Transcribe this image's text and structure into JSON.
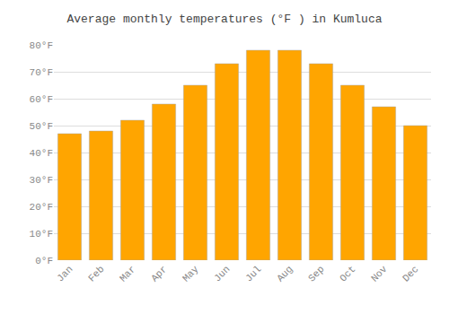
{
  "chart_data": {
    "type": "bar",
    "title": "Average monthly temperatures (°F ) in Kumluca",
    "categories": [
      "Jan",
      "Feb",
      "Mar",
      "Apr",
      "May",
      "Jun",
      "Jul",
      "Aug",
      "Sep",
      "Oct",
      "Nov",
      "Dec"
    ],
    "values": [
      47,
      48,
      52,
      58,
      65,
      73,
      78,
      78,
      73,
      65,
      57,
      50
    ],
    "color": "#FFA500",
    "ylim": [
      0,
      80
    ],
    "yticks": [
      {
        "value": 0,
        "label": "0°F"
      },
      {
        "value": 10,
        "label": "10°F"
      },
      {
        "value": 20,
        "label": "20°F"
      },
      {
        "value": 30,
        "label": "30°F"
      },
      {
        "value": 40,
        "label": "40°F"
      },
      {
        "value": 50,
        "label": "50°F"
      },
      {
        "value": 60,
        "label": "60°F"
      },
      {
        "value": 70,
        "label": "70°F"
      },
      {
        "value": 80,
        "label": "80°F"
      }
    ],
    "grid": true
  }
}
